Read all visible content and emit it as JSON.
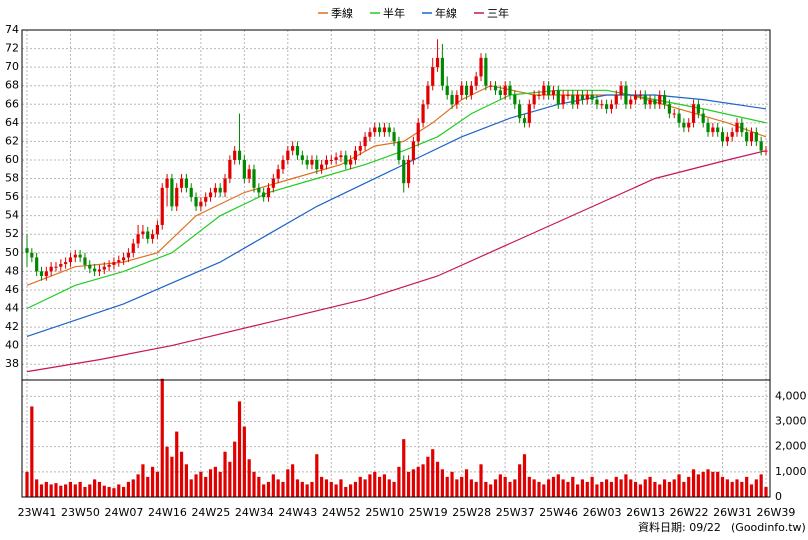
{
  "chart_data": [
    {
      "type": "candlestick",
      "open": [
        50.5,
        50,
        49.5,
        48,
        47.5,
        48,
        48.5,
        48.5,
        48.8,
        49,
        49.5,
        49.8,
        49.5,
        48.7,
        48.3,
        48,
        48.2,
        48.5,
        48.7,
        49,
        49.2,
        49.5,
        50,
        51,
        52,
        52.3,
        51.5,
        52,
        53,
        57,
        58,
        55,
        57,
        58,
        57,
        56,
        55,
        55.5,
        56,
        56.5,
        57,
        56.5,
        58,
        60,
        61,
        60,
        58,
        59,
        57,
        56.5,
        56,
        57,
        58,
        59,
        60,
        61,
        61.5,
        60.5,
        60,
        59.5,
        60,
        59,
        59.5,
        60,
        60,
        60.3,
        60.5,
        59.5,
        60,
        61,
        61.5,
        62.5,
        63,
        63.5,
        63,
        63.5,
        63,
        62,
        60,
        57.5,
        60,
        62,
        64,
        66,
        68,
        70,
        71,
        68,
        67,
        66,
        67,
        68,
        67,
        68,
        69,
        71,
        68,
        68,
        67.5,
        67,
        68,
        67,
        66,
        64.5,
        64,
        66,
        67,
        67,
        68,
        67,
        67.5,
        66,
        67,
        67,
        66,
        67,
        66.5,
        67,
        66.5,
        66,
        66,
        65.5,
        66,
        67,
        68,
        66,
        66.5,
        67,
        67,
        66,
        66.5,
        66,
        67,
        66,
        65,
        65,
        64,
        63.5,
        64,
        66,
        65,
        64,
        63,
        63.5,
        63,
        62,
        62.5,
        63,
        64,
        63,
        62,
        63,
        62,
        61
      ],
      "high": [
        52,
        50.5,
        50,
        48.5,
        48.5,
        49,
        49,
        49.3,
        49.5,
        50,
        50.3,
        50.3,
        50,
        49.2,
        48.8,
        48.7,
        49,
        49.2,
        49.5,
        49.7,
        50,
        50.5,
        51.5,
        53,
        53,
        52.8,
        52.5,
        53.5,
        57.5,
        58.5,
        58.5,
        57.5,
        58.5,
        58.5,
        57.5,
        56.5,
        56,
        56.5,
        57,
        57.5,
        57.5,
        58.5,
        60.5,
        61.5,
        65,
        60.5,
        59.5,
        59.5,
        57.5,
        57,
        57.5,
        58.5,
        59.5,
        60.5,
        61.5,
        62,
        62,
        61,
        60.5,
        60.5,
        60.5,
        60,
        60.5,
        60.5,
        60.8,
        61,
        61,
        60.5,
        61.5,
        62,
        63,
        63.5,
        64,
        64,
        64,
        64,
        63.5,
        62.5,
        60.5,
        60.5,
        62.5,
        64.5,
        66.5,
        68.5,
        71,
        73,
        72.5,
        69,
        67.5,
        67.5,
        68.5,
        68.5,
        68.5,
        69.5,
        71.5,
        71.5,
        68.5,
        68.5,
        68,
        68.5,
        68.5,
        67.5,
        66.5,
        65,
        66.5,
        67.5,
        67.5,
        68.5,
        68.5,
        68,
        68,
        67.5,
        67.5,
        67.5,
        67.5,
        67.5,
        67.5,
        67.5,
        67,
        66.5,
        66.5,
        66.5,
        67.5,
        68.5,
        68.5,
        67,
        67.5,
        67.5,
        67.5,
        67,
        67,
        67.5,
        67.5,
        66.5,
        65.5,
        65.5,
        64.5,
        64.5,
        66.5,
        66.5,
        65.5,
        64.5,
        64,
        64,
        63.5,
        63,
        63.5,
        64.5,
        64.5,
        63.5,
        63.5,
        63.5,
        62.5,
        61.5
      ],
      "low": [
        48.5,
        49,
        47.5,
        47,
        47,
        47.5,
        48,
        48,
        48.3,
        48.5,
        49,
        49,
        48.2,
        47.8,
        47.5,
        47.5,
        47.7,
        48,
        48.2,
        48.5,
        48.7,
        49,
        49.5,
        50.5,
        51.5,
        51,
        51,
        51.5,
        52.5,
        55,
        54.5,
        54.5,
        56.5,
        56.5,
        55.5,
        54.5,
        54.5,
        55,
        55.5,
        56,
        56,
        56,
        57.5,
        59.5,
        59.5,
        57.5,
        57.5,
        56.5,
        56,
        55.5,
        55.5,
        56.5,
        57.5,
        58.5,
        59.5,
        60.5,
        60,
        59.5,
        59,
        59,
        58.5,
        58.5,
        59,
        59.5,
        59.5,
        59.8,
        59,
        59,
        59.5,
        60.5,
        61,
        62,
        62.5,
        62.5,
        62.5,
        62.5,
        61.5,
        59.5,
        56.5,
        57,
        59.5,
        61.5,
        63.5,
        65.5,
        67.5,
        69.5,
        67.5,
        66.5,
        65.5,
        65.5,
        66.5,
        66.5,
        66.5,
        67.5,
        68.5,
        67.5,
        67.5,
        67,
        66.5,
        66.5,
        66.5,
        65.5,
        64,
        63.5,
        63.5,
        65.5,
        66.5,
        66.5,
        66.5,
        66.5,
        65.5,
        65.5,
        66.5,
        65.5,
        65.5,
        66,
        66,
        66,
        65.5,
        65.5,
        65,
        65,
        65.5,
        66.5,
        65.5,
        65.5,
        66,
        66.5,
        65.5,
        65.5,
        65.5,
        65.5,
        65.5,
        64.5,
        64.5,
        63.5,
        63,
        63,
        63.5,
        64.5,
        63.5,
        62.5,
        62.5,
        62.5,
        61.5,
        61.5,
        62,
        62.5,
        62.5,
        61.5,
        61.5,
        61.5,
        60.5,
        60.5
      ],
      "close": [
        50,
        49.5,
        48,
        47.5,
        48,
        48.5,
        48.5,
        48.8,
        49,
        49.5,
        49.8,
        49.5,
        48.7,
        48.3,
        48,
        48.2,
        48.5,
        48.7,
        49,
        49.2,
        49.5,
        50,
        51,
        52,
        52.3,
        51.5,
        52,
        53,
        57,
        58,
        55,
        57,
        58,
        57,
        56,
        55,
        55.5,
        56,
        56.5,
        57,
        56.5,
        58,
        60,
        61,
        60,
        58,
        59,
        57,
        56.5,
        56,
        57,
        58,
        59,
        60,
        61,
        61.5,
        60.5,
        60,
        59.5,
        60,
        59,
        59.5,
        60,
        60,
        60.3,
        60.5,
        59.5,
        60,
        61,
        61.5,
        62.5,
        63,
        63.5,
        63,
        63.5,
        63,
        62,
        60,
        57.5,
        60,
        62,
        64,
        66,
        68,
        70,
        71,
        68,
        67,
        66,
        67,
        68,
        67,
        68,
        69,
        71,
        68,
        68,
        67.5,
        67,
        68,
        67,
        66,
        64.5,
        64,
        66,
        67,
        67,
        68,
        67,
        67.5,
        66,
        67,
        67,
        66,
        67,
        66.5,
        67,
        66.5,
        66,
        66,
        65.5,
        66,
        67,
        68,
        66,
        66.5,
        67,
        67,
        66,
        66.5,
        66,
        67,
        66,
        65,
        65,
        64,
        63.5,
        64,
        66,
        65,
        64,
        63,
        63.5,
        63,
        62,
        62.5,
        63,
        64,
        63,
        62,
        63,
        62,
        61,
        61
      ],
      "up_color": "#e00000",
      "down_color": "#008800",
      "ylim": [
        36.3,
        74
      ],
      "yticks": [
        38,
        40,
        42,
        44,
        46,
        48,
        50,
        52,
        54,
        56,
        58,
        60,
        62,
        64,
        66,
        68,
        70,
        72,
        74
      ],
      "grid": true,
      "legend": "top",
      "series": [
        {
          "name": "季線",
          "color": "#e07020",
          "x": [
            0,
            10,
            20,
            27,
            35,
            45,
            55,
            65,
            72,
            78,
            84,
            90,
            96,
            105,
            115,
            125,
            135,
            145,
            153
          ],
          "values": [
            46.5,
            48.5,
            49,
            50,
            54,
            56.5,
            58,
            59.5,
            61.5,
            62,
            64,
            66.5,
            68,
            67,
            67,
            67,
            65.5,
            64,
            62.5
          ]
        },
        {
          "name": "半年",
          "color": "#22cc22",
          "x": [
            0,
            10,
            20,
            30,
            40,
            50,
            60,
            70,
            78,
            85,
            92,
            100,
            110,
            120,
            130,
            140,
            153
          ],
          "values": [
            44,
            46.5,
            48,
            50,
            54,
            56.5,
            58,
            59.5,
            61,
            62.5,
            65,
            67,
            67.5,
            67.5,
            66.5,
            65.5,
            64
          ]
        },
        {
          "name": "年線",
          "color": "#1e64c8",
          "x": [
            0,
            20,
            40,
            50,
            60,
            70,
            80,
            90,
            100,
            110,
            120,
            130,
            140,
            153
          ],
          "values": [
            41,
            44.5,
            49,
            52,
            55,
            57.5,
            60,
            62.5,
            64.5,
            66,
            67,
            67,
            66.5,
            65.5
          ]
        },
        {
          "name": "三年",
          "color": "#c8145a",
          "x": [
            0,
            15,
            30,
            50,
            70,
            85,
            100,
            115,
            130,
            145,
            153
          ],
          "values": [
            37.2,
            38.5,
            40,
            42.5,
            45,
            47.5,
            51,
            54.5,
            58,
            60,
            61
          ]
        }
      ]
    },
    {
      "type": "bar",
      "categories": [
        "23W41",
        null,
        null,
        null,
        null,
        null,
        null,
        null,
        null,
        "23W50",
        null,
        null,
        null,
        null,
        null,
        null,
        null,
        null,
        "24W07",
        null,
        null,
        null,
        null,
        null,
        null,
        null,
        null,
        "24W16",
        null,
        null,
        null,
        null,
        null,
        null,
        null,
        null,
        "24W25",
        null,
        null,
        null,
        null,
        null,
        null,
        null,
        null,
        "24W34",
        null,
        null,
        null,
        null,
        null,
        null,
        null,
        null,
        "24W43",
        null,
        null,
        null,
        null,
        null,
        null,
        null,
        null,
        "24W52",
        null,
        null,
        null,
        null,
        null,
        null,
        null,
        null,
        "25W10",
        null,
        null,
        null,
        null,
        null,
        null,
        null,
        null,
        "25W19",
        null,
        null,
        null,
        null,
        null,
        null,
        null,
        null,
        "25W28",
        null,
        null,
        null,
        null,
        null,
        null,
        null,
        null,
        "25W37",
        null,
        null,
        null,
        null,
        null,
        null,
        null,
        null,
        "25W46",
        null,
        null,
        null,
        null,
        null,
        null,
        null,
        null,
        "26W03",
        null,
        null,
        null,
        null,
        null,
        null,
        null,
        null,
        "26W13",
        null,
        null,
        null,
        null,
        null,
        null,
        null,
        null,
        "26W22",
        null,
        null,
        null,
        null,
        null,
        null,
        null,
        null,
        "26W31",
        null,
        null,
        null,
        null,
        null,
        null,
        null,
        null,
        "26W39"
      ],
      "values": [
        1000,
        3600,
        700,
        500,
        600,
        500,
        550,
        450,
        500,
        600,
        500,
        600,
        400,
        500,
        700,
        600,
        450,
        400,
        350,
        500,
        400,
        600,
        700,
        900,
        1300,
        800,
        1200,
        1000,
        4700,
        2000,
        1600,
        2600,
        1800,
        1300,
        700,
        900,
        1000,
        800,
        1100,
        1200,
        1000,
        1800,
        1400,
        2200,
        3800,
        2800,
        1500,
        1000,
        800,
        500,
        600,
        900,
        700,
        600,
        1100,
        1300,
        700,
        600,
        500,
        600,
        1700,
        800,
        700,
        600,
        500,
        700,
        400,
        500,
        600,
        800,
        700,
        900,
        1000,
        800,
        900,
        700,
        600,
        1200,
        2300,
        1000,
        1100,
        1200,
        1300,
        1600,
        1900,
        1400,
        1100,
        800,
        1000,
        700,
        800,
        1100,
        700,
        600,
        1300,
        600,
        500,
        700,
        900,
        800,
        600,
        700,
        1300,
        1700,
        800,
        700,
        600,
        500,
        700,
        800,
        900,
        700,
        600,
        800,
        500,
        700,
        600,
        800,
        500,
        600,
        700,
        600,
        800,
        700,
        900,
        700,
        600,
        500,
        700,
        800,
        600,
        500,
        700,
        600,
        700,
        900,
        600,
        800,
        1100,
        900,
        1000,
        1100,
        1000,
        1000,
        800,
        700,
        600,
        700,
        600,
        800,
        500,
        700,
        900,
        400
      ],
      "color": "#e00000",
      "ylim": [
        0,
        4650
      ],
      "yticks": [
        0,
        {
          "value": 1000,
          "label": "1,000"
        },
        {
          "value": 2000,
          "label": "2,000"
        },
        {
          "value": 3000,
          "label": "3,000"
        },
        {
          "value": 4000,
          "label": "4,000"
        }
      ],
      "grid": true
    }
  ],
  "date_label": "資料日期: 09/22",
  "source": "(Goodinfo.tw)"
}
